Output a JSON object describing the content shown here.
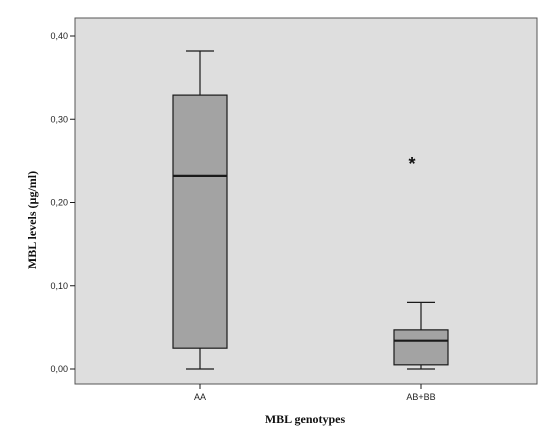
{
  "chart_data": {
    "type": "boxplot",
    "xlabel": "MBL genotypes",
    "ylabel": "MBL   levels (µg/ml)",
    "ylim": [
      0,
      0.4
    ],
    "yticks": [
      "0,00",
      "0,10",
      "0,20",
      "0,30",
      "0,40"
    ],
    "ytick_values": [
      0,
      0.1,
      0.2,
      0.3,
      0.4
    ],
    "grid": false,
    "colors": {
      "plot_bg": "#dedede",
      "box_fill": "#a3a3a3",
      "line": "#1a1a1a"
    },
    "categories": [
      "AA",
      "AB+BB"
    ],
    "boxes": [
      {
        "category": "AA",
        "min": 0.0,
        "q1": 0.025,
        "median": 0.232,
        "q3": 0.329,
        "max": 0.382,
        "outliers": []
      },
      {
        "category": "AB+BB",
        "min": 0.0,
        "q1": 0.005,
        "median": 0.034,
        "q3": 0.047,
        "max": 0.08,
        "outliers": [
          0.25
        ],
        "outlier_marker": "*"
      }
    ]
  }
}
